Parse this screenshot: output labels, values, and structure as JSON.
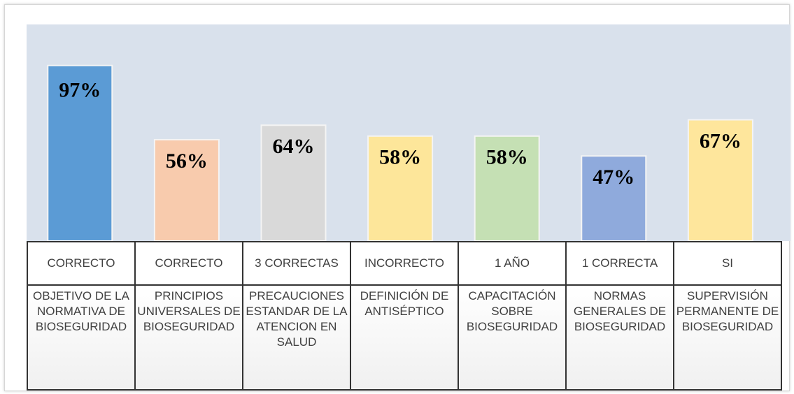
{
  "chart_data": {
    "type": "bar",
    "categories": [
      "OBJETIVO DE LA NORMATIVA DE BIOSEGURIDAD",
      "PRINCIPIOS UNIVERSALES DE BIOSEGURIDAD",
      "PRECAUCIONES ESTANDAR DE LA ATENCION EN SALUD",
      "DEFINICIÓN DE ANTISÉPTICO",
      "CAPACITACIÓN SOBRE BIOSEGURIDAD",
      "NORMAS GENERALES DE BIOSEGURIDAD",
      "SUPERVISIÓN PERMANENTE DE BIOSEGURIDAD"
    ],
    "answers": [
      "CORRECTO",
      "CORRECTO",
      "3 CORRECTAS",
      "INCORRECTO",
      "1 AÑO",
      "1 CORRECTA",
      "SI"
    ],
    "values": [
      97,
      56,
      64,
      58,
      58,
      47,
      67
    ],
    "value_labels": [
      "97%",
      "56%",
      "64%",
      "58%",
      "58%",
      "47%",
      "67%"
    ],
    "colors": [
      "#5b9bd5",
      "#f8cbad",
      "#d9d9d9",
      "#fde69a",
      "#c5e0b4",
      "#8faadc",
      "#fee69c"
    ],
    "ylim": [
      0,
      100
    ]
  }
}
